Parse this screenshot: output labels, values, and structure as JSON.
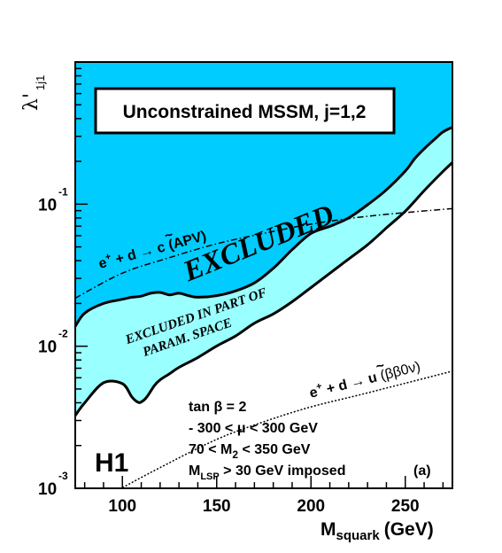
{
  "chart_data": {
    "type": "area",
    "title": "Unconstrained MSSM, j=1,2",
    "xlabel_main": "M",
    "xlabel_sub": "squark",
    "xlabel_unit": "(GeV)",
    "ylabel_main": "λ'",
    "ylabel_sub": "1j1",
    "xlim": [
      75,
      275
    ],
    "ylim": [
      0.001,
      1.0
    ],
    "y_scale": "log",
    "x_ticks": [
      100,
      150,
      200,
      250
    ],
    "x_tick_labels": [
      "100",
      "150",
      "200",
      "250"
    ],
    "y_ticks": [
      {
        "value": 0.1,
        "base": "10",
        "exp": "-1"
      },
      {
        "value": 0.01,
        "base": "10",
        "exp": "-2"
      },
      {
        "value": 0.001,
        "base": "10",
        "exp": "-3"
      }
    ],
    "regions": {
      "excluded": {
        "label": "EXCLUDED",
        "color": "#00ccff"
      },
      "partial": {
        "label_line1": "EXCLUDED IN PART OF",
        "label_line2": "PARAM. SPACE",
        "color": "#99ffff"
      }
    },
    "series": [
      {
        "role": "excluded_boundary",
        "x": [
          75,
          80,
          90,
          100,
          105,
          110,
          115,
          120,
          125,
          130,
          135,
          140,
          150,
          160,
          170,
          180,
          190,
          200,
          210,
          220,
          230,
          240,
          250,
          255,
          260,
          265,
          270,
          275
        ],
        "y": [
          0.0138,
          0.0171,
          0.02,
          0.0214,
          0.0221,
          0.0225,
          0.0236,
          0.0239,
          0.023,
          0.0236,
          0.0227,
          0.0221,
          0.0227,
          0.0245,
          0.0279,
          0.0353,
          0.0478,
          0.0622,
          0.0698,
          0.08,
          0.099,
          0.126,
          0.171,
          0.209,
          0.245,
          0.282,
          0.322,
          0.348
        ]
      },
      {
        "role": "partial_boundary",
        "x": [
          75,
          80,
          90,
          100,
          105,
          108,
          110,
          113,
          117,
          120,
          125,
          130,
          140,
          150,
          160,
          170,
          180,
          190,
          200,
          210,
          220,
          230,
          240,
          250,
          260,
          270,
          275
        ],
        "y": [
          0.00325,
          0.004,
          0.00553,
          0.00545,
          0.0044,
          0.00405,
          0.00405,
          0.0044,
          0.0053,
          0.0058,
          0.0064,
          0.0071,
          0.00833,
          0.01004,
          0.01179,
          0.01452,
          0.01686,
          0.02054,
          0.02588,
          0.03262,
          0.04109,
          0.05177,
          0.06794,
          0.08916,
          0.1244,
          0.1698,
          0.1964
        ]
      },
      {
        "role": "apv_limit",
        "x": [
          75,
          100,
          125,
          150,
          175,
          200,
          225,
          250,
          275
        ],
        "y": [
          0.0218,
          0.0327,
          0.042,
          0.0526,
          0.0623,
          0.0723,
          0.0807,
          0.0872,
          0.093
        ]
      },
      {
        "role": "double_beta_limit",
        "x": [
          100,
          120,
          150,
          175,
          200,
          225,
          250,
          275
        ],
        "y": [
          0.00101,
          0.0014,
          0.00221,
          0.00294,
          0.00374,
          0.00452,
          0.00549,
          0.00668
        ]
      }
    ],
    "annotations": {
      "apv_prefix": "e",
      "apv_sup": "+",
      "apv_mid": " + d → ",
      "apv_particle": "c",
      "apv_tilde": "~",
      "apv_suffix": " (APV)",
      "bb_prefix": "e",
      "bb_sup": "+",
      "bb_mid": " + d → ",
      "bb_particle": "u",
      "bb_tilde": "~",
      "bb_suffix": "  (ββ0ν)",
      "params_line1": "tan β = 2",
      "params_line2": "- 300 < μ < 300 GeV",
      "params_line3_a": "70 < M",
      "params_line3_sub": "2",
      "params_line3_b": " < 350 GeV",
      "params_line4_a": "M",
      "params_line4_sub": "LSP",
      "params_line4_b": " > 30 GeV imposed",
      "panel_label": "(a)",
      "experiment": "H1"
    }
  }
}
